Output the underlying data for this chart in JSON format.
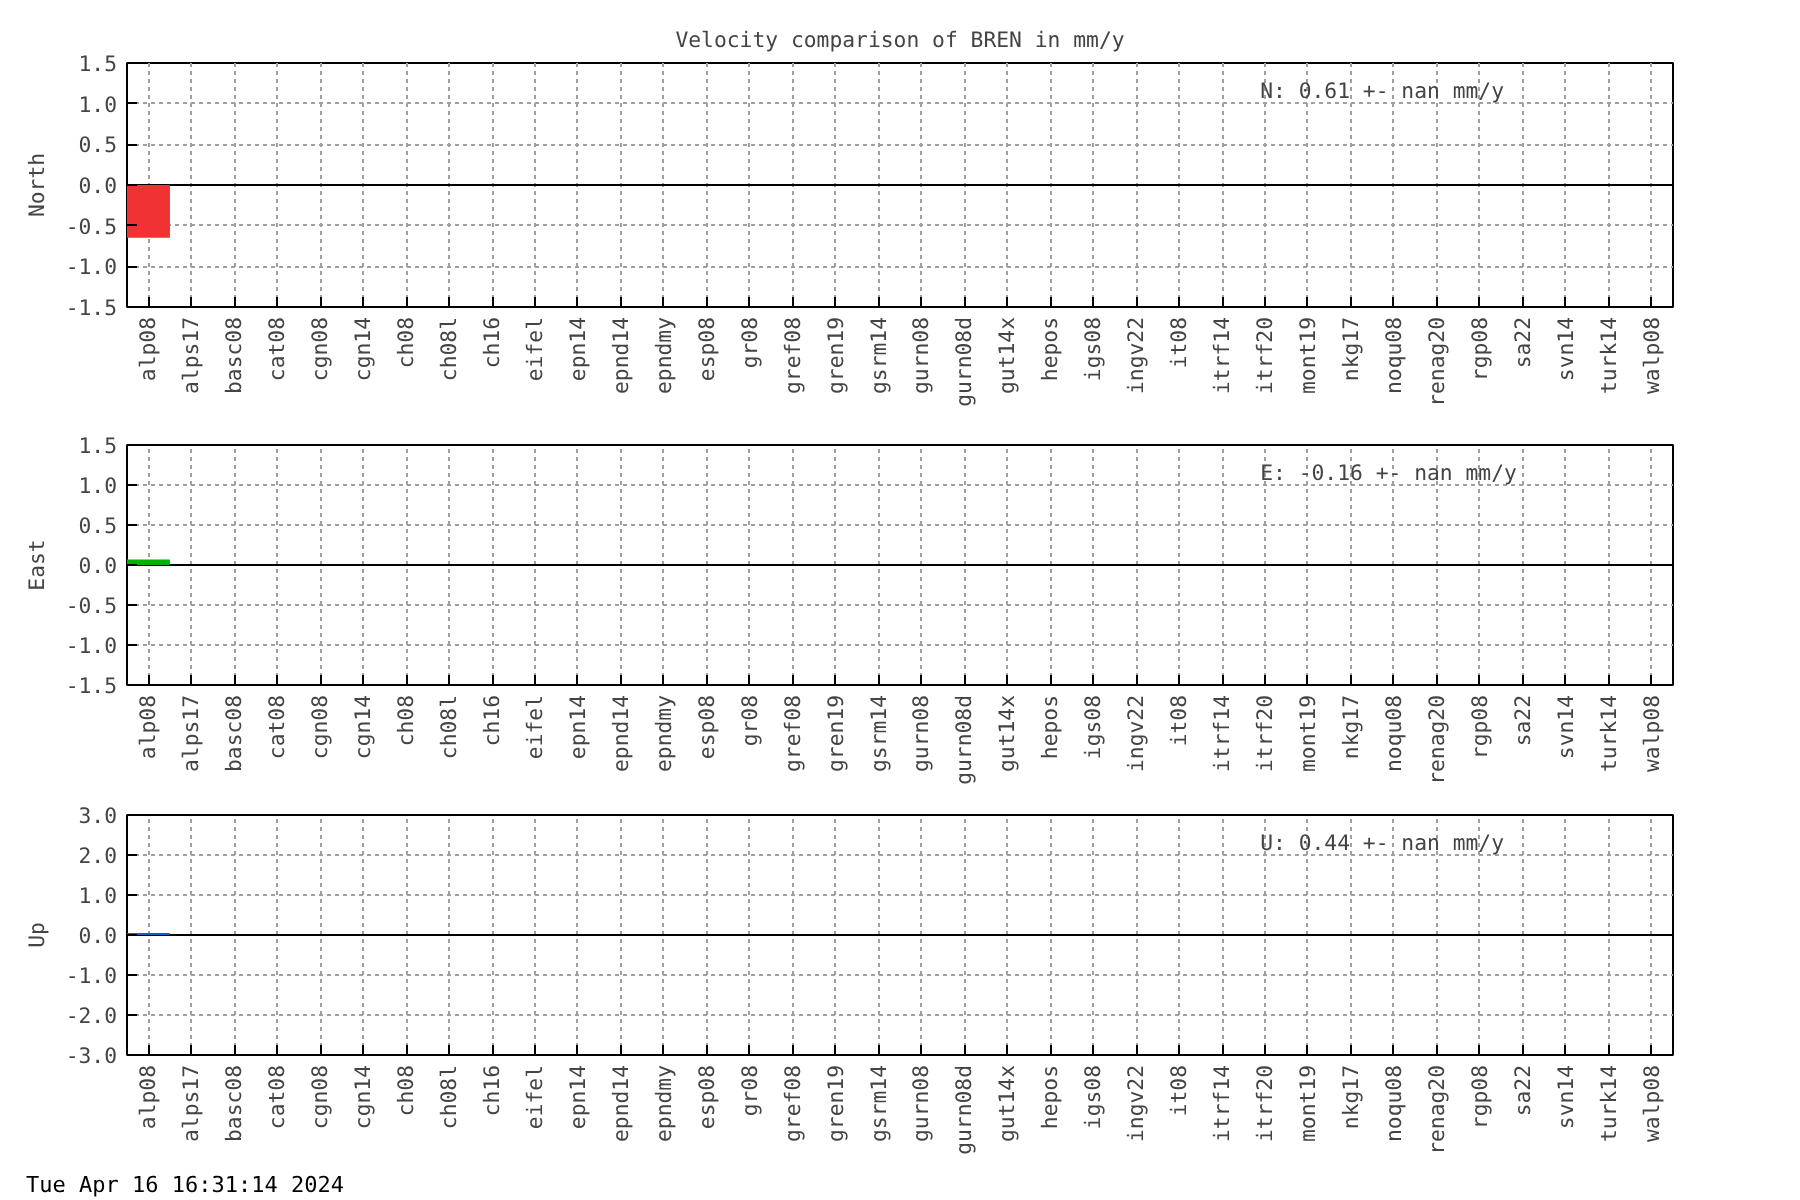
{
  "chart_data": [
    {
      "type": "bar",
      "title": "Velocity comparison of BREN in mm/y",
      "ylabel": "North",
      "categories": [
        "alp08",
        "alps17",
        "basc08",
        "cat08",
        "cgn08",
        "cgn14",
        "ch08",
        "ch08l",
        "ch16",
        "eifel",
        "epn14",
        "epnd14",
        "epndmy",
        "esp08",
        "gr08",
        "gref08",
        "gren19",
        "gsrm14",
        "gurn08",
        "gurn08d",
        "gut14x",
        "hepos",
        "igs08",
        "ingv22",
        "it08",
        "itrf14",
        "itrf20",
        "mont19",
        "nkg17",
        "noqu08",
        "renag20",
        "rgp08",
        "sa22",
        "svn14",
        "turk14",
        "walp08"
      ],
      "values": [
        -0.65,
        null,
        null,
        null,
        null,
        null,
        null,
        null,
        null,
        null,
        null,
        null,
        null,
        null,
        null,
        null,
        null,
        null,
        null,
        null,
        null,
        null,
        null,
        null,
        null,
        null,
        null,
        null,
        null,
        null,
        null,
        null,
        null,
        null,
        null,
        null
      ],
      "color": "#f03232",
      "ylim": [
        -1.5,
        1.5
      ],
      "yticks": [
        {
          "value": -1.5,
          "label": "-1.5"
        },
        {
          "value": -1.0,
          "label": "-1.0"
        },
        {
          "value": -0.5,
          "label": "-0.5"
        },
        {
          "value": 0,
          "label": "0.0"
        },
        {
          "value": 0.5,
          "label": "0.5"
        },
        {
          "value": 1.0,
          "label": "1.0"
        },
        {
          "value": 1.5,
          "label": "1.5"
        }
      ],
      "grid": true,
      "ref_lines": [
        {
          "axis": "y",
          "value": 0,
          "color": "#000000"
        }
      ],
      "annotations": [
        "N:   0.61 +-   nan mm/y"
      ]
    },
    {
      "type": "bar",
      "ylabel": "East",
      "categories": [
        "alp08",
        "alps17",
        "basc08",
        "cat08",
        "cgn08",
        "cgn14",
        "ch08",
        "ch08l",
        "ch16",
        "eifel",
        "epn14",
        "epnd14",
        "epndmy",
        "esp08",
        "gr08",
        "gref08",
        "gren19",
        "gsrm14",
        "gurn08",
        "gurn08d",
        "gut14x",
        "hepos",
        "igs08",
        "ingv22",
        "it08",
        "itrf14",
        "itrf20",
        "mont19",
        "nkg17",
        "noqu08",
        "renag20",
        "rgp08",
        "sa22",
        "svn14",
        "turk14",
        "walp08"
      ],
      "values": [
        0.07,
        null,
        null,
        null,
        null,
        null,
        null,
        null,
        null,
        null,
        null,
        null,
        null,
        null,
        null,
        null,
        null,
        null,
        null,
        null,
        null,
        null,
        null,
        null,
        null,
        null,
        null,
        null,
        null,
        null,
        null,
        null,
        null,
        null,
        null,
        null
      ],
      "color": "#00b000",
      "ylim": [
        -1.5,
        1.5
      ],
      "yticks": [
        {
          "value": -1.5,
          "label": "-1.5"
        },
        {
          "value": -1.0,
          "label": "-1.0"
        },
        {
          "value": -0.5,
          "label": "-0.5"
        },
        {
          "value": 0,
          "label": "0.0"
        },
        {
          "value": 0.5,
          "label": "0.5"
        },
        {
          "value": 1.0,
          "label": "1.0"
        },
        {
          "value": 1.5,
          "label": "1.5"
        }
      ],
      "grid": true,
      "ref_lines": [
        {
          "axis": "y",
          "value": 0,
          "color": "#000000"
        }
      ],
      "annotations": [
        "E:  -0.16 +-   nan mm/y"
      ]
    },
    {
      "type": "bar",
      "ylabel": "Up",
      "categories": [
        "alp08",
        "alps17",
        "basc08",
        "cat08",
        "cgn08",
        "cgn14",
        "ch08",
        "ch08l",
        "ch16",
        "eifel",
        "epn14",
        "epnd14",
        "epndmy",
        "esp08",
        "gr08",
        "gref08",
        "gren19",
        "gsrm14",
        "gurn08",
        "gurn08d",
        "gut14x",
        "hepos",
        "igs08",
        "ingv22",
        "it08",
        "itrf14",
        "itrf20",
        "mont19",
        "nkg17",
        "noqu08",
        "renag20",
        "rgp08",
        "sa22",
        "svn14",
        "turk14",
        "walp08"
      ],
      "values": [
        0.05,
        null,
        null,
        null,
        null,
        null,
        null,
        null,
        null,
        null,
        null,
        null,
        null,
        null,
        null,
        null,
        null,
        null,
        null,
        null,
        null,
        null,
        null,
        null,
        null,
        null,
        null,
        null,
        null,
        null,
        null,
        null,
        null,
        null,
        null,
        null
      ],
      "color": "#1060c0",
      "ylim": [
        -3.0,
        3.0
      ],
      "yticks": [
        {
          "value": -3.0,
          "label": "-3.0"
        },
        {
          "value": -2.0,
          "label": "-2.0"
        },
        {
          "value": -1.0,
          "label": "-1.0"
        },
        {
          "value": 0,
          "label": "0.0"
        },
        {
          "value": 1.0,
          "label": "1.0"
        },
        {
          "value": 2.0,
          "label": "2.0"
        },
        {
          "value": 3.0,
          "label": "3.0"
        }
      ],
      "grid": true,
      "ref_lines": [
        {
          "axis": "y",
          "value": 0,
          "color": "#000000"
        }
      ],
      "annotations": [
        "U:   0.44 +-   nan mm/y",
        "Tue Apr 16 16:31:14 2024"
      ]
    }
  ]
}
